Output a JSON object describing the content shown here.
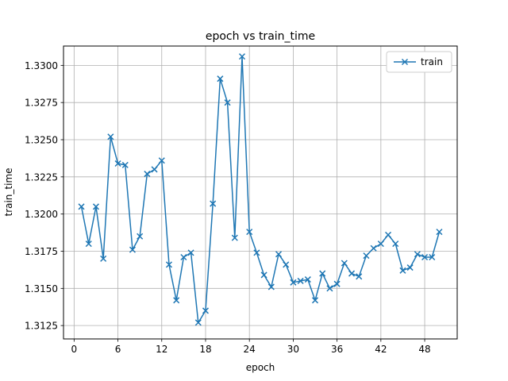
{
  "chart_data": {
    "type": "line",
    "title": "epoch vs train_time",
    "xlabel": "epoch",
    "ylabel": "train_time",
    "xlim": [
      -1.45,
      52.45
    ],
    "ylim": [
      1.3116,
      1.3313
    ],
    "xticks": [
      0,
      6,
      12,
      18,
      24,
      30,
      36,
      42,
      48
    ],
    "yticks": [
      1.3125,
      1.315,
      1.3175,
      1.32,
      1.3225,
      1.325,
      1.3275,
      1.33
    ],
    "ytick_labels": [
      "1.3125",
      "1.3150",
      "1.3175",
      "1.3200",
      "1.3225",
      "1.3250",
      "1.3275",
      "1.3300"
    ],
    "xtick_labels": [
      "0",
      "6",
      "12",
      "18",
      "24",
      "30",
      "36",
      "42",
      "48"
    ],
    "grid": true,
    "legend_position": "top-right",
    "series": [
      {
        "name": "train",
        "color": "#1f77b4",
        "marker": "x",
        "x": [
          1,
          2,
          3,
          4,
          5,
          6,
          7,
          8,
          9,
          10,
          11,
          12,
          13,
          14,
          15,
          16,
          17,
          18,
          19,
          20,
          21,
          22,
          23,
          24,
          25,
          26,
          27,
          28,
          29,
          30,
          31,
          32,
          33,
          34,
          35,
          36,
          37,
          38,
          39,
          40,
          41,
          42,
          43,
          44,
          45,
          46,
          47,
          48,
          49,
          50
        ],
        "y": [
          1.3205,
          1.318,
          1.3205,
          1.317,
          1.3252,
          1.3234,
          1.3233,
          1.3176,
          1.3185,
          1.3227,
          1.323,
          1.3236,
          1.3166,
          1.3142,
          1.3171,
          1.3174,
          1.3127,
          1.3135,
          1.3207,
          1.3291,
          1.3275,
          1.3184,
          1.3306,
          1.3188,
          1.3174,
          1.3159,
          1.3151,
          1.3173,
          1.3166,
          1.3154,
          1.3155,
          1.3156,
          1.3142,
          1.316,
          1.315,
          1.3153,
          1.3167,
          1.316,
          1.3158,
          1.3172,
          1.3177,
          1.318,
          1.3186,
          1.318,
          1.3162,
          1.3164,
          1.3173,
          1.3171,
          1.3171,
          1.3188
        ]
      }
    ]
  }
}
